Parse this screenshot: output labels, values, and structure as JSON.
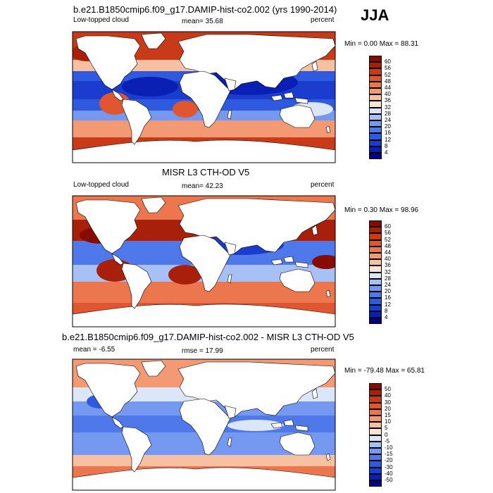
{
  "season": "JJA",
  "panels": [
    {
      "title": "b.e21.B1850cmip6.f09_g17.DAMIP-hist-co2.002 (yrs 1990-2014)",
      "left_label": "Low-topped cloud",
      "stat_label": "mean=  35.68",
      "units": "percent",
      "minmax": "Min =   0.00 Max =  88.31",
      "colorbar_labels": [
        "60",
        "56",
        "52",
        "48",
        "44",
        "40",
        "36",
        "32",
        "28",
        "24",
        "20",
        "16",
        "12",
        "8",
        "4"
      ]
    },
    {
      "title": "MISR L3 CTH-OD V5",
      "left_label": "Low-topped cloud",
      "stat_label": "mean=  42.23",
      "units": "percent",
      "minmax": "Min =   0.30 Max =  98.96",
      "colorbar_labels": [
        "60",
        "56",
        "52",
        "48",
        "44",
        "40",
        "36",
        "32",
        "28",
        "24",
        "20",
        "16",
        "12",
        "8",
        "4"
      ]
    },
    {
      "title": "b.e21.B1850cmip6.f09_g17.DAMIP-hist-co2.002 - MISR L3 CTH-OD V5",
      "left_label": "mean =  -6.55",
      "stat_label": "rmse =  17.99",
      "units": "percent",
      "minmax": "Min = -79.48 Max =  65.81",
      "colorbar_labels": [
        "50",
        "40",
        "30",
        "20",
        "15",
        "10",
        "5",
        "0",
        "-5",
        "-10",
        "-15",
        "-20",
        "-30",
        "-40",
        "-50"
      ]
    }
  ],
  "colors": {
    "seq": [
      "#000080",
      "#0a1fb4",
      "#1a3ccf",
      "#2f5ae0",
      "#4f79ea",
      "#7598f0",
      "#a7c0f5",
      "#dbe6f8",
      "#fbe4d6",
      "#f7c0a0",
      "#f39a74",
      "#ec764e",
      "#df5630",
      "#c93a18",
      "#a81f0a",
      "#860b00"
    ],
    "div": [
      "#000080",
      "#0a1fb4",
      "#1a3ccf",
      "#2f5ae0",
      "#4f79ea",
      "#7598f0",
      "#a7c0f5",
      "#dbe6f8",
      "#fbe4d6",
      "#f7c0a0",
      "#f39a74",
      "#ec764e",
      "#df5630",
      "#c93a18",
      "#a81f0a",
      "#860b00"
    ]
  }
}
